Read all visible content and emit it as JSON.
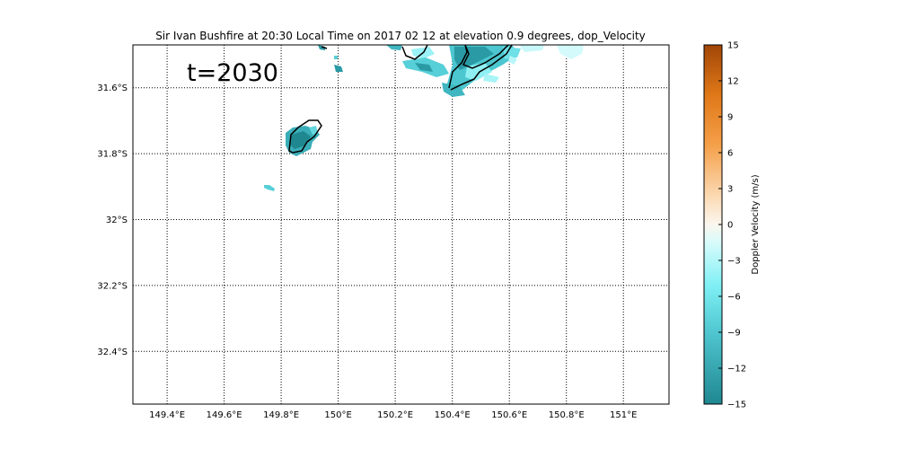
{
  "figure": {
    "title": "Sir Ivan Bushfire at 20:30 Local Time on 2017 02 12 at elevation 0.9 degrees, dop_Velocity",
    "time_label": "t=2030"
  },
  "map": {
    "lon_range": [
      149.28,
      151.16
    ],
    "lat_range": [
      -32.56,
      -31.47
    ],
    "lon_ticks": [
      149.4,
      149.6,
      149.8,
      150.0,
      150.2,
      150.4,
      150.6,
      150.8,
      151.0
    ],
    "lon_tick_labels": [
      "149.4°E",
      "149.6°E",
      "149.8°E",
      "150°E",
      "150.2°E",
      "150.4°E",
      "150.6°E",
      "150.8°E",
      "151°E"
    ],
    "lat_ticks": [
      -31.6,
      -31.8,
      -32.0,
      -32.2,
      -32.4
    ],
    "lat_tick_labels": [
      "31.6°S",
      "31.8°S",
      "32°S",
      "32.2°S",
      "32.4°S"
    ],
    "grid": true,
    "grid_style": "dotted",
    "echo_regions": [
      {
        "name": "fire-plume-west",
        "lon": [
          149.83,
          149.95
        ],
        "lat": [
          -31.81,
          -31.72
        ]
      },
      {
        "name": "small-echo-southwest",
        "lon": [
          149.75,
          149.78
        ],
        "lat": [
          -31.92,
          -31.91
        ]
      },
      {
        "name": "northern-echoes",
        "lon": [
          150.16,
          150.86
        ],
        "lat": [
          -31.64,
          -31.47
        ]
      }
    ]
  },
  "colorbar": {
    "label": "Doppler Velocity (m/s)",
    "ticks": [
      "15",
      "12",
      "9",
      "6",
      "3",
      "0",
      "−3",
      "−6",
      "−9",
      "−12",
      "−15"
    ],
    "min": -15,
    "max": 15,
    "colors": {
      "neg_15": "#1f8790",
      "neg_9": "#7ff0f5",
      "zero": "#fbf6ee",
      "pos_9": "#f5a04a",
      "pos_15": "#a14607"
    }
  }
}
